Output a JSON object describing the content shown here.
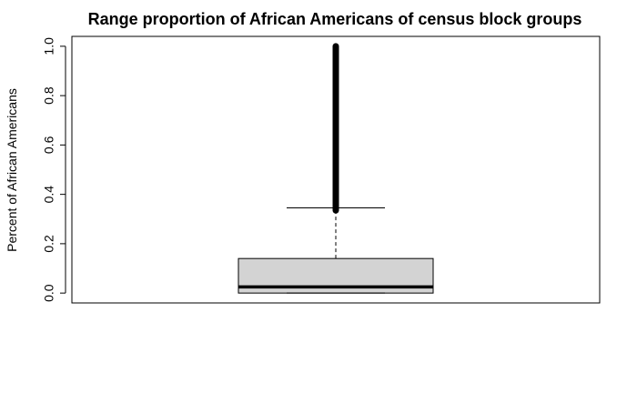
{
  "chart_data": {
    "type": "box",
    "title": "Range proportion of African Americans of census block groups",
    "xlabel": "",
    "ylabel": "Percent of African Americans",
    "ylim": [
      -0.04,
      1.04
    ],
    "yticks": [
      "0.0",
      "0.2",
      "0.4",
      "0.6",
      "0.8",
      "1.0"
    ],
    "ytick_values": [
      0.0,
      0.2,
      0.4,
      0.6,
      0.8,
      1.0
    ],
    "grid": false,
    "box": {
      "whisker_low": 0.0,
      "q1": 0.0,
      "median": 0.025,
      "q3": 0.14,
      "whisker_high": 0.345,
      "outlier_min": 0.335,
      "outlier_max": 1.0,
      "box_fill": "#d3d3d3"
    }
  }
}
